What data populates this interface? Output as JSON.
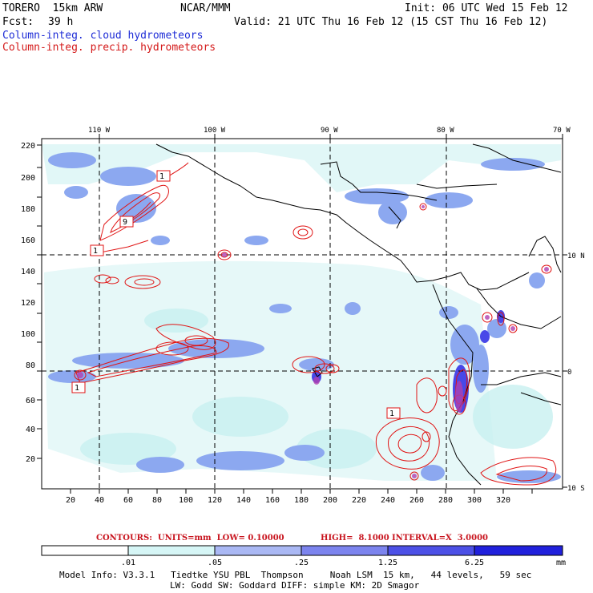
{
  "header": {
    "model": "TORERO  15km ARW",
    "org": "NCAR/MMM",
    "init": "Init: 06 UTC Wed 15 Feb 12",
    "fcst_label": "Fcst:",
    "fcst_value": "39 h",
    "valid": "Valid: 21 UTC Thu 16 Feb 12 (15 CST Thu 16 Feb 12)",
    "field1": "Column-integ. cloud hydrometeors",
    "field2": "Column-integ. precip. hydrometeors"
  },
  "map": {
    "lon_labels": [
      "110 W",
      "100 W",
      "90 W",
      "80 W",
      "70 W"
    ],
    "lat_labels": [
      "10 N",
      "0",
      "10 S"
    ],
    "x_ticks": [
      "20",
      "40",
      "60",
      "80",
      "100",
      "120",
      "140",
      "160",
      "180",
      "200",
      "220",
      "240",
      "260",
      "280",
      "300",
      "320"
    ],
    "y_ticks": [
      "20",
      "40",
      "60",
      "80",
      "100",
      "120",
      "140",
      "160",
      "180",
      "200",
      "220"
    ],
    "contour_labels": [
      "1",
      "9",
      "1",
      "1",
      "1"
    ],
    "colors": {
      "cloud_light": "#c8f0f0",
      "cloud_mid": "#8ca8f0",
      "cloud_dark": "#4848e8",
      "contour": "#e01414"
    }
  },
  "contour_info": {
    "units": "CONTOURS:  UNITS=mm  LOW= 0.10000",
    "high": "HIGH=  8.1000",
    "interval": "INTERVAL=X  3.0000"
  },
  "colorbar": {
    "labels": [
      ".01",
      ".05",
      ".25",
      "1.25",
      "6.25"
    ],
    "unit": "mm",
    "colors": [
      "#ffffff",
      "#d6f6f6",
      "#aab8f4",
      "#7c84ee",
      "#4c50e6",
      "#2828dc",
      "#1010d8"
    ]
  },
  "footer": {
    "line1": "Model Info: V3.3.1   Tiedtke YSU PBL  Thompson     Noah LSM  15 km,   44 levels,   59 sec",
    "line2": "LW: Godd SW: Goddard DIFF: simple KM: 2D Smagor"
  }
}
